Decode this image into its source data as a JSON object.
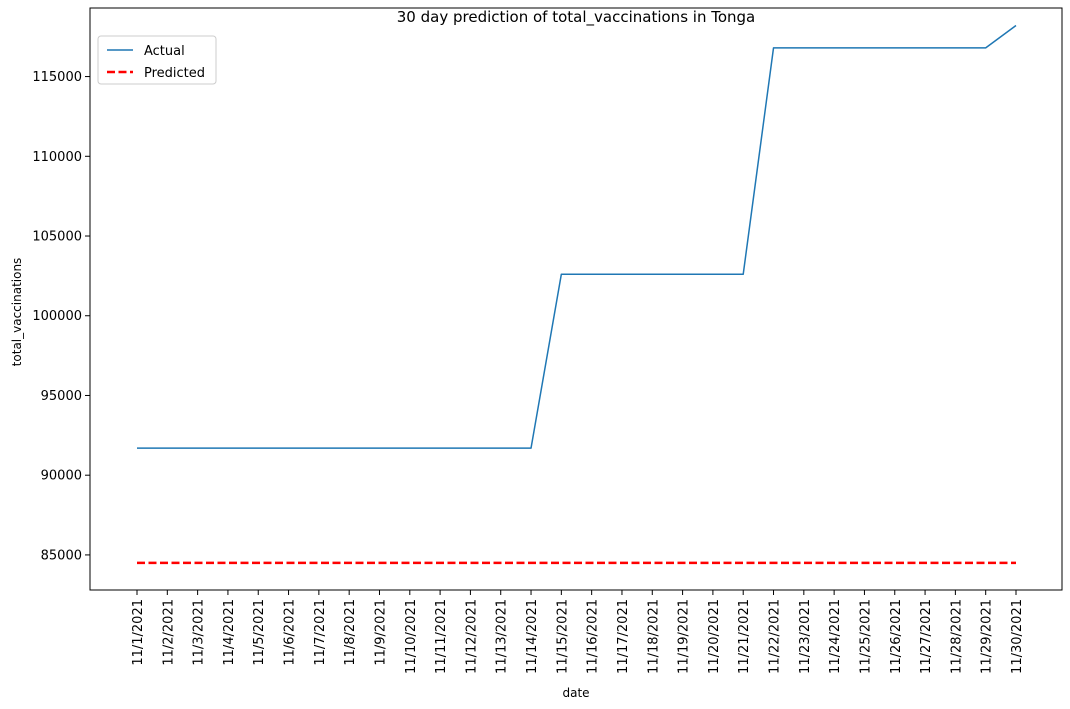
{
  "chart_data": {
    "type": "line",
    "title": "30 day prediction of total_vaccinations in Tonga",
    "xlabel": "date",
    "ylabel": "total_vaccinations",
    "categories": [
      "11/1/2021",
      "11/2/2021",
      "11/3/2021",
      "11/4/2021",
      "11/5/2021",
      "11/6/2021",
      "11/7/2021",
      "11/8/2021",
      "11/9/2021",
      "11/10/2021",
      "11/11/2021",
      "11/12/2021",
      "11/13/2021",
      "11/14/2021",
      "11/15/2021",
      "11/16/2021",
      "11/17/2021",
      "11/18/2021",
      "11/19/2021",
      "11/20/2021",
      "11/21/2021",
      "11/22/2021",
      "11/23/2021",
      "11/24/2021",
      "11/25/2021",
      "11/26/2021",
      "11/27/2021",
      "11/28/2021",
      "11/29/2021",
      "11/30/2021"
    ],
    "ylim": [
      82800,
      119300
    ],
    "yticks": [
      85000,
      90000,
      95000,
      100000,
      105000,
      110000,
      115000
    ],
    "grid": false,
    "legend": "top-left",
    "series": [
      {
        "name": "Actual",
        "color": "#1f77b4",
        "style": "solid",
        "values": [
          91700,
          91700,
          91700,
          91700,
          91700,
          91700,
          91700,
          91700,
          91700,
          91700,
          91700,
          91700,
          91700,
          91700,
          102600,
          102600,
          102600,
          102600,
          102600,
          102600,
          102600,
          116800,
          116800,
          116800,
          116800,
          116800,
          116800,
          116800,
          116800,
          118200
        ]
      },
      {
        "name": "Predicted",
        "color": "#ff0000",
        "style": "dashed",
        "values": [
          84500,
          84500,
          84500,
          84500,
          84500,
          84500,
          84500,
          84500,
          84500,
          84500,
          84500,
          84500,
          84500,
          84500,
          84500,
          84500,
          84500,
          84500,
          84500,
          84500,
          84500,
          84500,
          84500,
          84500,
          84500,
          84500,
          84500,
          84500,
          84500,
          84500
        ]
      }
    ]
  }
}
